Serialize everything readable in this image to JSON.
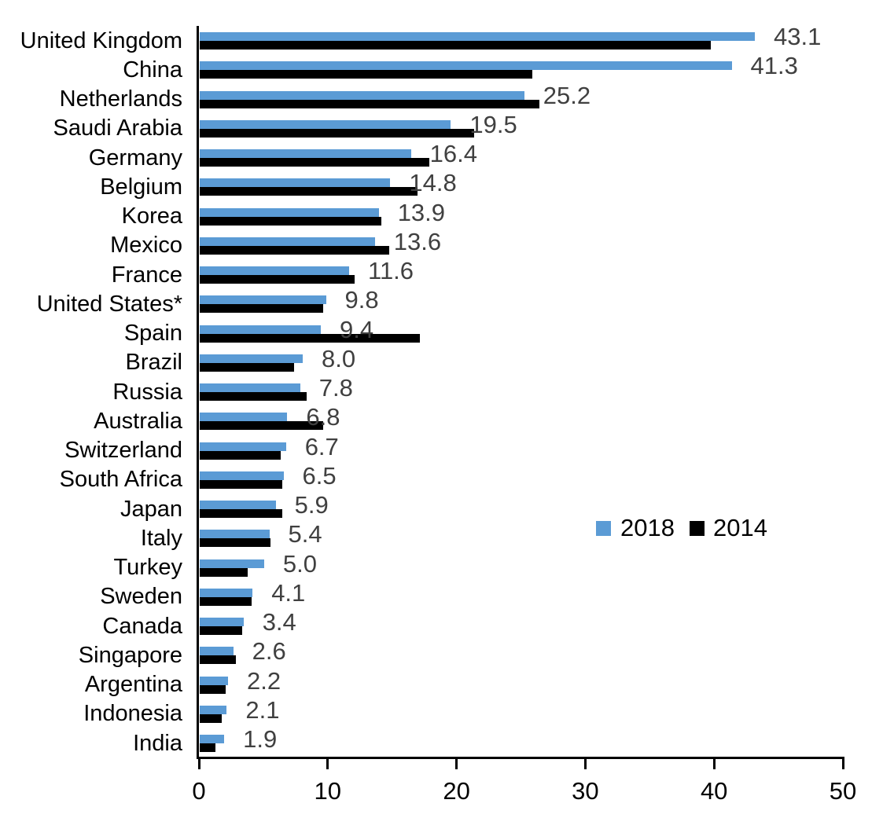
{
  "chart_data": {
    "type": "bar",
    "orientation": "horizontal",
    "title": "",
    "xlabel": "",
    "ylabel": "",
    "xlim": [
      0,
      50
    ],
    "x_ticks": [
      0,
      10,
      20,
      30,
      40,
      50
    ],
    "grid": false,
    "legend_position": "center-right",
    "categories": [
      "United Kingdom",
      "China",
      "Netherlands",
      "Saudi Arabia",
      "Germany",
      "Belgium",
      "Korea",
      "Mexico",
      "France",
      "United States*",
      "Spain",
      "Brazil",
      "Russia",
      "Australia",
      "Switzerland",
      "South Africa",
      "Japan",
      "Italy",
      "Turkey",
      "Sweden",
      "Canada",
      "Singapore",
      "Argentina",
      "Indonesia",
      "India"
    ],
    "series": [
      {
        "name": "2018",
        "color": "#5B9BD5",
        "data_labels_shown": true,
        "values": [
          43.1,
          41.3,
          25.2,
          19.5,
          16.4,
          14.8,
          13.9,
          13.6,
          11.6,
          9.8,
          9.4,
          8.0,
          7.8,
          6.8,
          6.7,
          6.5,
          5.9,
          5.4,
          5.0,
          4.1,
          3.4,
          2.6,
          2.2,
          2.1,
          1.9
        ]
      },
      {
        "name": "2014",
        "color": "#000000",
        "data_labels_shown": false,
        "values": [
          39.7,
          25.8,
          26.4,
          21.3,
          17.8,
          16.9,
          14.1,
          14.7,
          12.0,
          9.6,
          17.1,
          7.3,
          8.3,
          9.6,
          6.3,
          6.4,
          6.4,
          5.5,
          3.7,
          4.0,
          3.3,
          2.8,
          2.0,
          1.7,
          1.2
        ]
      }
    ],
    "data_label_values": [
      "43.1",
      "41.3",
      "25.2",
      "19.5",
      "16.4",
      "14.8",
      "13.9",
      "13.6",
      "11.6",
      "9.8",
      "9.4",
      "8.0",
      "7.8",
      "6.8",
      "6.7",
      "6.5",
      "5.9",
      "5.4",
      "5.0",
      "4.1",
      "3.4",
      "2.6",
      "2.2",
      "2.1",
      "1.9"
    ],
    "data_label_color": "#404040",
    "axis_color": "#000000",
    "tick_labels": [
      "0",
      "10",
      "20",
      "30",
      "40",
      "50"
    ]
  }
}
